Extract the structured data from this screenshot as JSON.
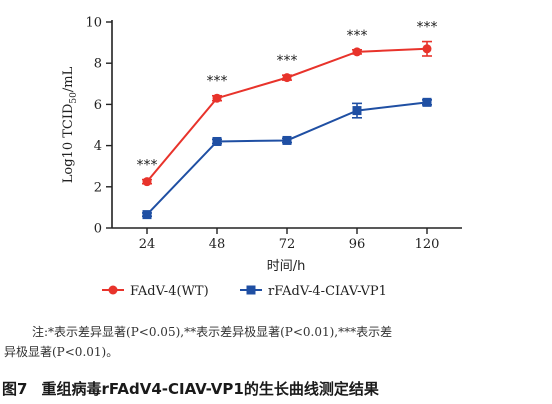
{
  "chart_data": {
    "type": "line",
    "xlabel": "时间/h",
    "ylabel_main": "Log10 TCID",
    "ylabel_sub": "50",
    "ylabel_tail": "/mL",
    "x": [
      24,
      48,
      72,
      96,
      120
    ],
    "ylim": [
      0,
      10
    ],
    "yticks": [
      0,
      2,
      4,
      6,
      8,
      10
    ],
    "series": [
      {
        "name": "FAdV-4(WT)",
        "color": "#e8332b",
        "marker": "circle",
        "values": [
          2.25,
          6.3,
          7.3,
          8.55,
          8.7
        ],
        "errors": [
          0.1,
          0.12,
          0.12,
          0.1,
          0.35
        ]
      },
      {
        "name": "rFAdV-4-CIAV-VP1",
        "color": "#1f4fa3",
        "marker": "square",
        "values": [
          0.65,
          4.2,
          4.25,
          5.7,
          6.1
        ],
        "errors": [
          0.08,
          0.1,
          0.1,
          0.35,
          0.12
        ]
      }
    ],
    "annotations": [
      "***",
      "***",
      "***",
      "***",
      "***"
    ],
    "legend_position": "bottom"
  },
  "note": {
    "line1": "注:*表示差异显著(P<0.05),**表示差异极显著(P<0.01),***表示差",
    "line2": "异极显著(P<0.01)。"
  },
  "caption": {
    "fig": "图7",
    "title": "重组病毒rFAdV4-CIAV-VP1的生长曲线测定结果"
  }
}
